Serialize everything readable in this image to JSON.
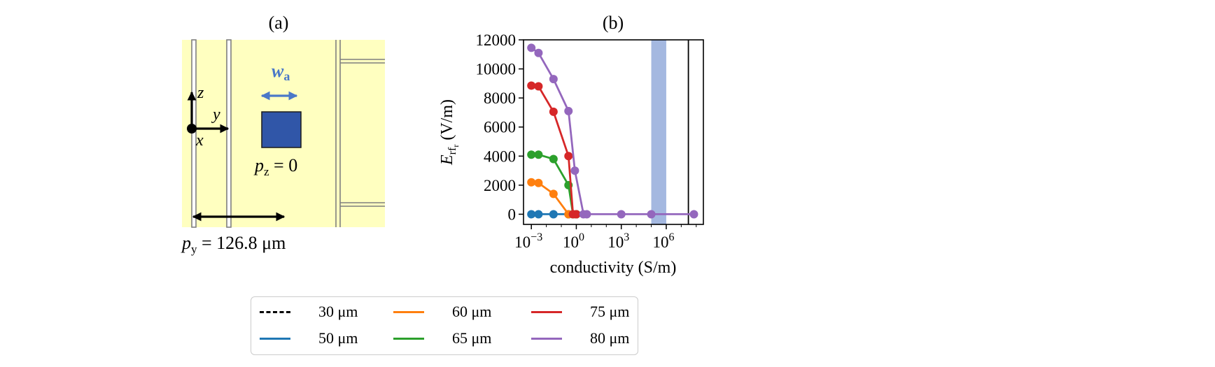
{
  "panel_a": {
    "title": "(a)",
    "width_label_main": "w",
    "width_label_sub": "a",
    "axis_z": "z",
    "axis_y": "y",
    "axis_x": "x",
    "pz_label_main": "p",
    "pz_label_sub": "z",
    "pz_label_value": " = 0",
    "py_label_main": "p",
    "py_label_sub": "y",
    "py_label_value": " = 126.8 μm",
    "colors": {
      "background": "#ffffc0",
      "square": "#3056a8",
      "arrow_blue": "#4a78c8"
    }
  },
  "chart_data": {
    "type": "line",
    "title": "(b)",
    "xlabel": "conductivity (S/m)",
    "ylabel_main": "E",
    "ylabel_sub": "rf",
    "ylabel_subsub": "r",
    "ylabel_unit": " (V/m)",
    "xscale": "log",
    "xlim": [
      0.0003,
      300000000
    ],
    "ylim": [
      -700,
      12000
    ],
    "yticks": [
      0,
      2000,
      4000,
      6000,
      8000,
      10000,
      12000
    ],
    "ytick_labels": [
      "0",
      "2000",
      "4000",
      "6000",
      "8000",
      "10000",
      "12000"
    ],
    "xticks": [
      0.001,
      1,
      1000,
      1000000
    ],
    "xtick_base": "10",
    "xtick_exponents": [
      "−3",
      "0",
      "3",
      "6"
    ],
    "shaded_band": {
      "from": 100000,
      "to": 1000000,
      "color": "#a4b8e0"
    },
    "vertical_lines": [
      30000000
    ],
    "grid": false,
    "legend_position": "bottom-center",
    "series": [
      {
        "name": "30 μm",
        "color": "#000000",
        "style": "dashed",
        "x": [],
        "y": []
      },
      {
        "name": "50 μm",
        "color": "#1f77b4",
        "style": "solid",
        "x": [
          0.001,
          0.003,
          0.03,
          0.3,
          1
        ],
        "y": [
          0,
          0,
          0,
          0,
          0
        ]
      },
      {
        "name": "60 μm",
        "color": "#ff7f0e",
        "style": "solid",
        "x": [
          0.001,
          0.003,
          0.03,
          0.3,
          1
        ],
        "y": [
          2200,
          2150,
          1400,
          0,
          0
        ]
      },
      {
        "name": "65 μm",
        "color": "#2ca02c",
        "style": "solid",
        "x": [
          0.001,
          0.003,
          0.03,
          0.3,
          0.6,
          1
        ],
        "y": [
          4100,
          4100,
          3800,
          2000,
          0,
          0
        ]
      },
      {
        "name": "75 μm",
        "color": "#d62728",
        "style": "solid",
        "x": [
          0.001,
          0.003,
          0.03,
          0.3,
          0.6,
          1
        ],
        "y": [
          8850,
          8800,
          7050,
          4000,
          0,
          0
        ]
      },
      {
        "name": "80 μm",
        "color": "#9467bd",
        "style": "solid",
        "x": [
          0.001,
          0.003,
          0.03,
          0.3,
          0.8,
          3,
          5,
          1000,
          100000,
          70000000
        ],
        "y": [
          11450,
          11100,
          9300,
          7100,
          3000,
          0,
          0,
          0,
          0,
          0
        ]
      }
    ]
  }
}
